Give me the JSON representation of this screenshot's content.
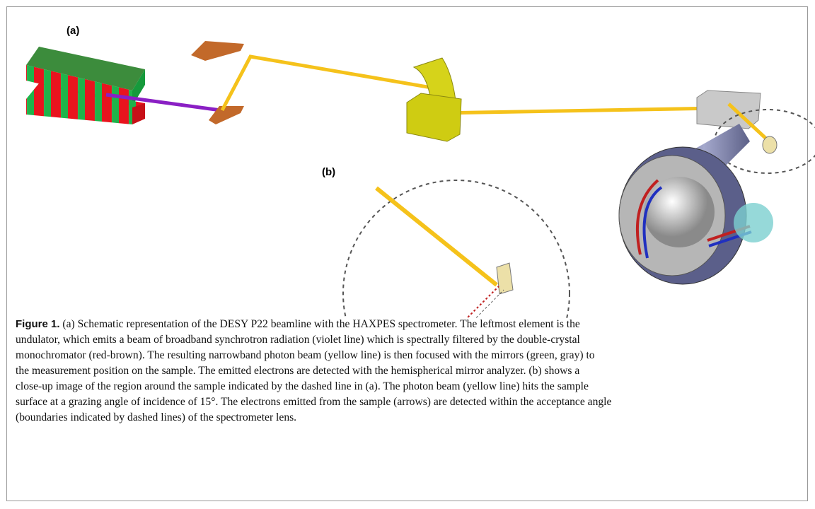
{
  "panels": {
    "a": "(a)",
    "b": "(b)"
  },
  "caption": {
    "label": "Figure 1.",
    "lines": [
      "(a) Schematic representation of the DESY P22 beamline with the HAXPES spectrometer. The leftmost element is the",
      "undulator, which emits a beam of broadband synchrotron radiation (violet line) which is spectrally filtered by the double-crystal",
      "monochromator (red-brown). The resulting narrowband photon beam (yellow line) is then focused with the mirrors (green, gray) to",
      "the measurement position on the sample. The emitted electrons are detected with the hemispherical mirror analyzer. (b) shows a",
      "close-up image of the region around the sample indicated by the dashed line in (a). The photon beam (yellow line) hits the sample",
      "surface at a grazing angle of incidence of 15°. The electrons emitted from the sample (arrows) are detected within the acceptance angle",
      "(boundaries indicated by dashed lines) of the spectrometer lens."
    ]
  }
}
